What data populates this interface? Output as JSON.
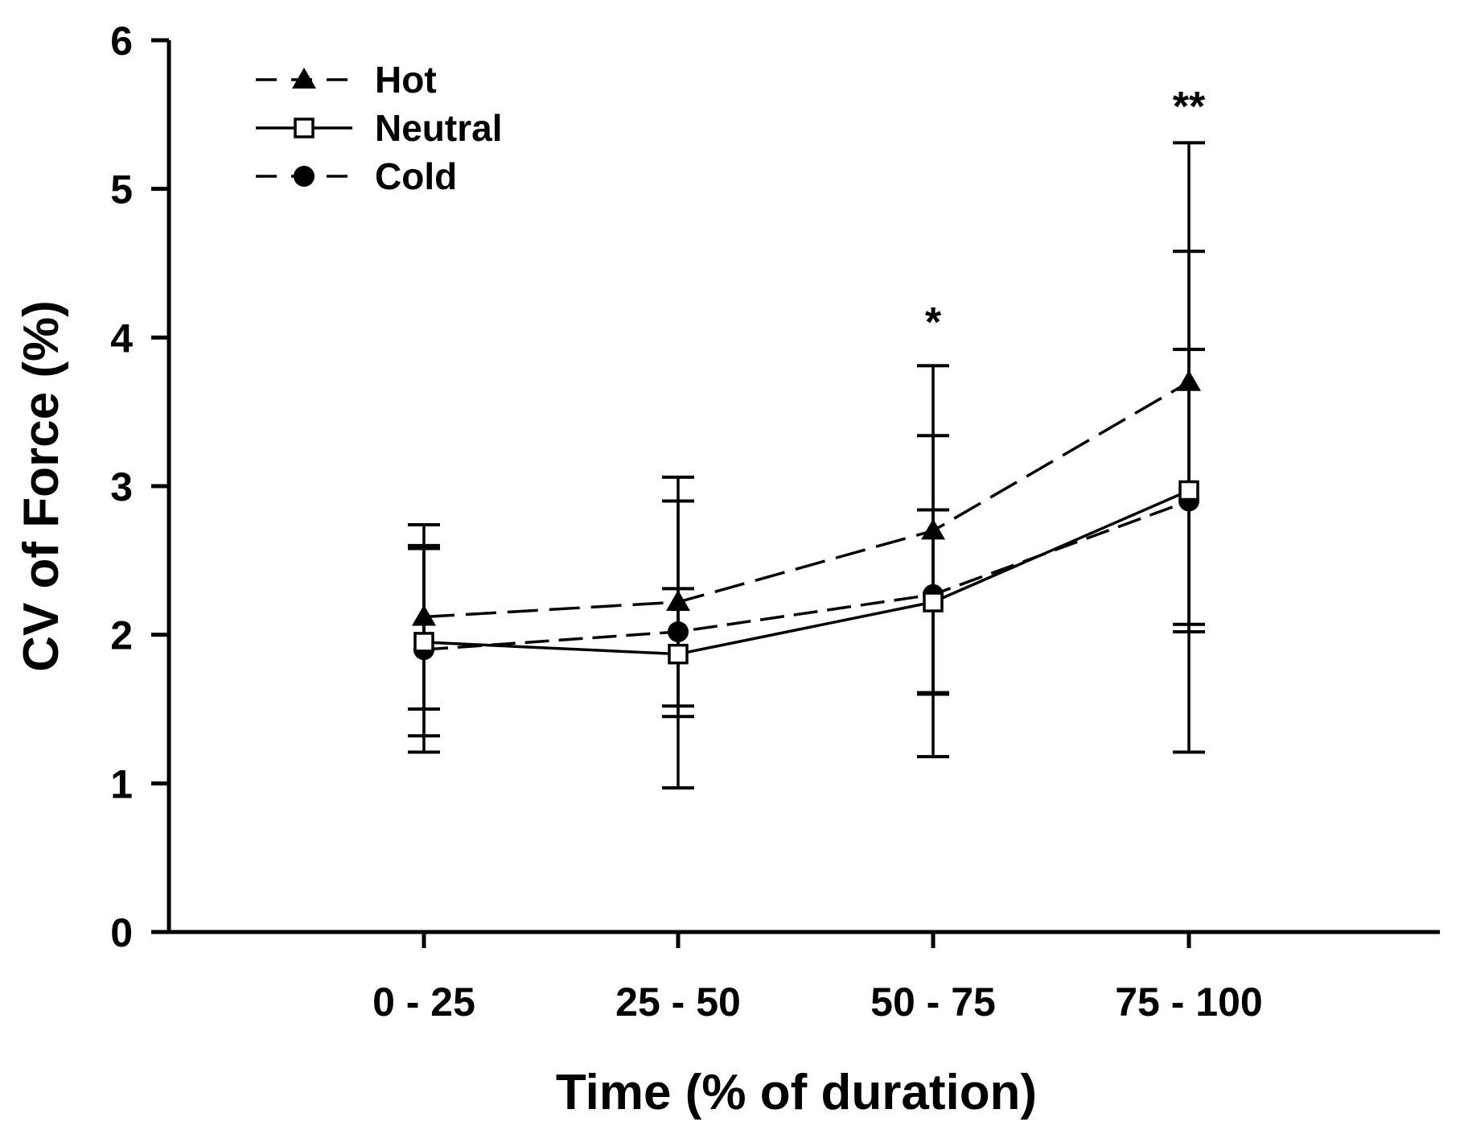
{
  "chart_data": {
    "type": "line",
    "title": "",
    "xlabel": "Time (% of duration)",
    "ylabel": "CV of Force (%)",
    "categories": [
      "0 - 25",
      "25 - 50",
      "50 - 75",
      "75 - 100"
    ],
    "ylim": [
      0,
      6
    ],
    "yticks": [
      "0",
      "1",
      "2",
      "3",
      "4",
      "5",
      "6"
    ],
    "legend_position": "top-left",
    "grid": false,
    "series": [
      {
        "name": "Hot",
        "marker": "filled-triangle",
        "line_style": "dashed",
        "values": [
          2.12,
          2.22,
          2.7,
          3.7
        ],
        "err_low": [
          1.5,
          1.52,
          1.6,
          2.07
        ],
        "err_high": [
          2.74,
          2.9,
          3.81,
          5.31
        ]
      },
      {
        "name": "Neutral",
        "marker": "open-square",
        "line_style": "solid",
        "values": [
          1.95,
          1.87,
          2.22,
          2.97
        ],
        "err_low": [
          1.32,
          0.97,
          1.18,
          1.21
        ],
        "err_high": [
          2.58,
          3.06,
          3.34,
          4.58
        ]
      },
      {
        "name": "Cold",
        "marker": "filled-circle",
        "line_style": "dashed",
        "values": [
          1.9,
          2.02,
          2.27,
          2.9
        ],
        "err_low": [
          1.21,
          1.45,
          1.61,
          2.02
        ],
        "err_high": [
          2.6,
          2.31,
          2.84,
          3.92
        ]
      }
    ],
    "annotations": [
      {
        "category": "50 - 75",
        "text": "*"
      },
      {
        "category": "75 - 100",
        "text": "**"
      }
    ]
  }
}
